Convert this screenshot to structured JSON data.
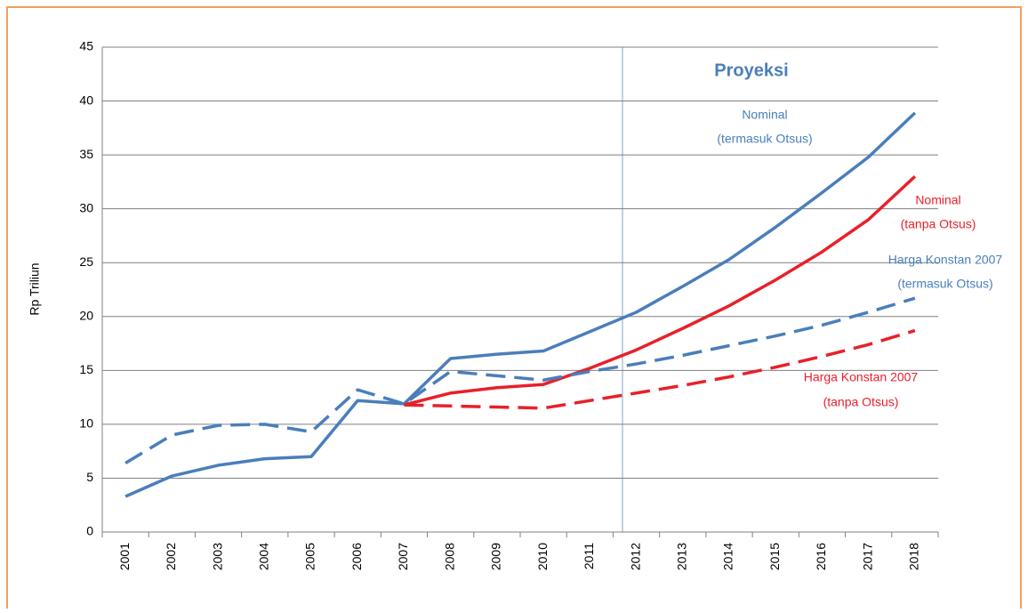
{
  "chart_data": {
    "type": "line",
    "y_label": "Rp Triliun",
    "categories": [
      "2001",
      "2002",
      "2003",
      "2004",
      "2005",
      "2006",
      "2007",
      "2008",
      "2009",
      "2010",
      "2011",
      "2012",
      "2013",
      "2014",
      "2015",
      "2016",
      "2017",
      "2018"
    ],
    "ylim": [
      0,
      45
    ],
    "yticks": [
      0,
      5,
      10,
      15,
      20,
      25,
      30,
      35,
      40,
      45
    ],
    "grid": true,
    "series": [
      {
        "color": "#4a7ebb",
        "dashed": false,
        "values": [
          3.3,
          5.2,
          6.2,
          6.8,
          7.0,
          12.2,
          11.9,
          16.1,
          16.5,
          16.8,
          18.6,
          20.4,
          22.8,
          25.3,
          28.3,
          31.5,
          34.8,
          38.9
        ]
      },
      {
        "color": "#e8202a",
        "dashed": false,
        "values": [
          null,
          null,
          null,
          null,
          null,
          null,
          11.8,
          12.9,
          13.4,
          13.7,
          15.2,
          16.9,
          18.9,
          21.0,
          23.4,
          26.0,
          29.0,
          33.0
        ]
      },
      {
        "color": "#4a7ebb",
        "dashed": true,
        "values": [
          6.4,
          9.0,
          9.9,
          10.0,
          9.3,
          13.2,
          11.9,
          14.9,
          14.5,
          14.1,
          14.9,
          15.6,
          16.4,
          17.3,
          18.2,
          19.2,
          20.4,
          21.7
        ]
      },
      {
        "color": "#e8202a",
        "dashed": true,
        "values": [
          null,
          null,
          null,
          null,
          null,
          null,
          11.8,
          11.7,
          11.6,
          11.5,
          12.2,
          12.9,
          13.6,
          14.4,
          15.3,
          16.3,
          17.4,
          18.7
        ]
      }
    ],
    "annotations": [
      {
        "text": "Proyeksi",
        "color": "#4a7ebb",
        "bold": true
      },
      {
        "text": "Nominal",
        "color": "#4a7ebb"
      },
      {
        "text": "(termasuk Otsus)",
        "color": "#4a7ebb"
      },
      {
        "text": "Nominal",
        "color": "#e8202a"
      },
      {
        "text": "(tanpa Otsus)",
        "color": "#e8202a"
      },
      {
        "text": "Harga Konstan 2007",
        "color": "#4a7ebb"
      },
      {
        "text": "(termasuk Otsus)",
        "color": "#4a7ebb"
      },
      {
        "text": "Harga Konstan 2007",
        "color": "#e8202a"
      },
      {
        "text": "(tanpa Otsus)",
        "color": "#e8202a"
      }
    ]
  }
}
